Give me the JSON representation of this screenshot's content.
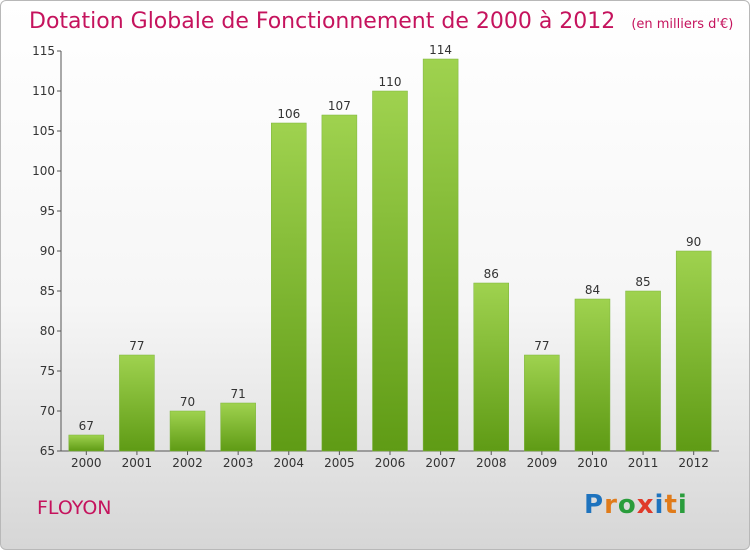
{
  "title": "Dotation Globale de Fonctionnement de 2000 à 2012",
  "unit": "(en milliers d'€)",
  "commune": "FLOYON",
  "logo_text": "Proxiti",
  "colors": {
    "title": "#c5135d",
    "bar_top": "#9fd24f",
    "bar_bottom": "#5f9b15"
  },
  "chart_data": {
    "type": "bar",
    "categories": [
      "2000",
      "2001",
      "2002",
      "2003",
      "2004",
      "2005",
      "2006",
      "2007",
      "2008",
      "2009",
      "2010",
      "2011",
      "2012"
    ],
    "values": [
      67,
      77,
      70,
      71,
      106,
      107,
      110,
      114,
      86,
      77,
      84,
      85,
      90
    ],
    "ylim": [
      65,
      115
    ],
    "yticks": [
      65,
      70,
      75,
      80,
      85,
      90,
      95,
      100,
      105,
      110,
      115
    ],
    "grid": false,
    "legend": "none"
  }
}
